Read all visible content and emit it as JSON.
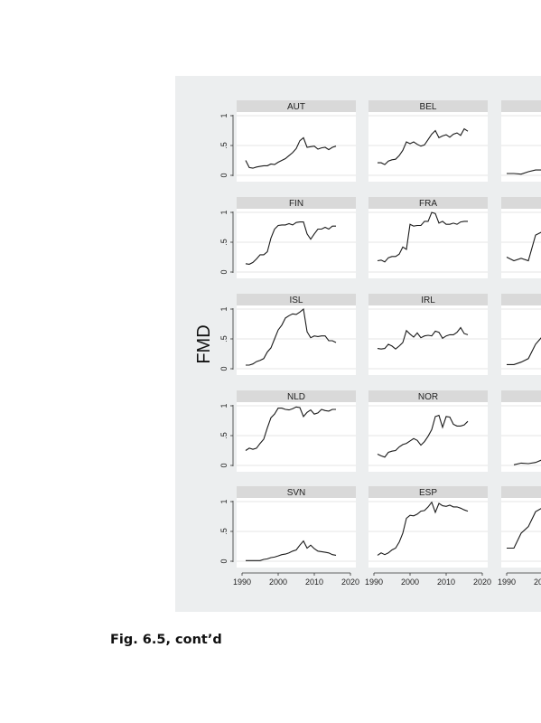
{
  "caption": "Fig. 6.5, cont’d",
  "chart_data": {
    "type": "line",
    "ylabel": "FMD",
    "xlim": [
      1990,
      2020
    ],
    "ylim": [
      0,
      1
    ],
    "xticks": [
      1990,
      2000,
      2010,
      2020
    ],
    "yticks": [
      0,
      0.5,
      1
    ],
    "ytick_labels": [
      "0",
      ".5",
      "1"
    ],
    "grid": true,
    "line_color": "#1a1a1a",
    "panels": [
      {
        "name": "AUT",
        "x": [
          1991,
          1992,
          1993,
          1994,
          1995,
          1996,
          1997,
          1998,
          1999,
          2000,
          2001,
          2002,
          2003,
          2004,
          2005,
          2006,
          2007,
          2008,
          2009,
          2010,
          2011,
          2012,
          2013,
          2014,
          2015,
          2016
        ],
        "values": [
          0.25,
          0.13,
          0.12,
          0.14,
          0.15,
          0.16,
          0.16,
          0.19,
          0.18,
          0.22,
          0.25,
          0.28,
          0.33,
          0.38,
          0.45,
          0.58,
          0.63,
          0.47,
          0.48,
          0.49,
          0.44,
          0.46,
          0.47,
          0.43,
          0.47,
          0.49
        ]
      },
      {
        "name": "BEL",
        "x": [
          1991,
          1992,
          1993,
          1994,
          1995,
          1996,
          1997,
          1998,
          1999,
          2000,
          2001,
          2002,
          2003,
          2004,
          2005,
          2006,
          2007,
          2008,
          2009,
          2010,
          2011,
          2012,
          2013,
          2014,
          2015,
          2016
        ],
        "values": [
          0.21,
          0.21,
          0.18,
          0.24,
          0.26,
          0.27,
          0.33,
          0.42,
          0.56,
          0.53,
          0.56,
          0.52,
          0.49,
          0.51,
          0.6,
          0.69,
          0.75,
          0.63,
          0.66,
          0.68,
          0.64,
          0.69,
          0.71,
          0.67,
          0.78,
          0.74
        ]
      },
      {
        "name": "",
        "x": [
          1990,
          1992,
          1994,
          1996,
          1998,
          2000
        ],
        "values": [
          0.03,
          0.03,
          0.02,
          0.06,
          0.09,
          0.09
        ]
      },
      {
        "name": "FIN",
        "x": [
          1991,
          1992,
          1993,
          1994,
          1995,
          1996,
          1997,
          1998,
          1999,
          2000,
          2001,
          2002,
          2003,
          2004,
          2005,
          2006,
          2007,
          2008,
          2009,
          2010,
          2011,
          2012,
          2013,
          2014,
          2015,
          2016
        ],
        "values": [
          0.14,
          0.13,
          0.16,
          0.22,
          0.29,
          0.29,
          0.34,
          0.57,
          0.72,
          0.78,
          0.79,
          0.79,
          0.81,
          0.79,
          0.83,
          0.84,
          0.84,
          0.64,
          0.55,
          0.64,
          0.72,
          0.72,
          0.75,
          0.72,
          0.77,
          0.77
        ]
      },
      {
        "name": "FRA",
        "x": [
          1991,
          1992,
          1993,
          1994,
          1995,
          1996,
          1997,
          1998,
          1999,
          2000,
          2001,
          2002,
          2003,
          2004,
          2005,
          2006,
          2007,
          2008,
          2009,
          2010,
          2011,
          2012,
          2013,
          2014,
          2015,
          2016
        ],
        "values": [
          0.19,
          0.2,
          0.17,
          0.24,
          0.26,
          0.26,
          0.3,
          0.42,
          0.38,
          0.8,
          0.77,
          0.78,
          0.78,
          0.85,
          0.85,
          1.0,
          0.98,
          0.82,
          0.85,
          0.8,
          0.8,
          0.82,
          0.8,
          0.84,
          0.85,
          0.85
        ]
      },
      {
        "name": "",
        "x": [
          1990,
          1992,
          1994,
          1996,
          1998,
          2000
        ],
        "values": [
          0.25,
          0.19,
          0.23,
          0.19,
          0.62,
          0.68
        ]
      },
      {
        "name": "ISL",
        "x": [
          1991,
          1992,
          1993,
          1994,
          1995,
          1996,
          1997,
          1998,
          1999,
          2000,
          2001,
          2002,
          2003,
          2004,
          2005,
          2006,
          2007,
          2008,
          2009,
          2010,
          2011,
          2012,
          2013,
          2014,
          2015,
          2016
        ],
        "values": [
          0.06,
          0.06,
          0.08,
          0.12,
          0.14,
          0.17,
          0.28,
          0.35,
          0.5,
          0.65,
          0.73,
          0.85,
          0.89,
          0.92,
          0.91,
          0.95,
          1.0,
          0.62,
          0.52,
          0.55,
          0.54,
          0.55,
          0.55,
          0.47,
          0.47,
          0.44
        ]
      },
      {
        "name": "IRL",
        "x": [
          1991,
          1992,
          1993,
          1994,
          1995,
          1996,
          1997,
          1998,
          1999,
          2000,
          2001,
          2002,
          2003,
          2004,
          2005,
          2006,
          2007,
          2008,
          2009,
          2010,
          2011,
          2012,
          2013,
          2014,
          2015,
          2016
        ],
        "values": [
          0.34,
          0.33,
          0.34,
          0.41,
          0.38,
          0.33,
          0.38,
          0.44,
          0.64,
          0.58,
          0.53,
          0.6,
          0.52,
          0.55,
          0.56,
          0.55,
          0.63,
          0.61,
          0.51,
          0.55,
          0.57,
          0.57,
          0.61,
          0.69,
          0.59,
          0.57
        ]
      },
      {
        "name": "",
        "x": [
          1990,
          1992,
          1994,
          1996,
          1998,
          2000
        ],
        "values": [
          0.07,
          0.07,
          0.11,
          0.17,
          0.41,
          0.55
        ]
      },
      {
        "name": "NLD",
        "x": [
          1991,
          1992,
          1993,
          1994,
          1995,
          1996,
          1997,
          1998,
          1999,
          2000,
          2001,
          2002,
          2003,
          2004,
          2005,
          2006,
          2007,
          2008,
          2009,
          2010,
          2011,
          2012,
          2013,
          2014,
          2015,
          2016
        ],
        "values": [
          0.25,
          0.29,
          0.27,
          0.29,
          0.37,
          0.44,
          0.63,
          0.8,
          0.86,
          0.96,
          0.96,
          0.94,
          0.93,
          0.95,
          0.98,
          0.97,
          0.82,
          0.89,
          0.93,
          0.86,
          0.88,
          0.94,
          0.92,
          0.91,
          0.94,
          0.94
        ]
      },
      {
        "name": "NOR",
        "x": [
          1991,
          1992,
          1993,
          1994,
          1995,
          1996,
          1997,
          1998,
          1999,
          2000,
          2001,
          2002,
          2003,
          2004,
          2005,
          2006,
          2007,
          2008,
          2009,
          2010,
          2011,
          2012,
          2013,
          2014,
          2015,
          2016
        ],
        "values": [
          0.19,
          0.16,
          0.14,
          0.22,
          0.24,
          0.25,
          0.31,
          0.35,
          0.37,
          0.41,
          0.45,
          0.42,
          0.34,
          0.4,
          0.49,
          0.6,
          0.82,
          0.84,
          0.64,
          0.82,
          0.81,
          0.69,
          0.66,
          0.66,
          0.68,
          0.74
        ]
      },
      {
        "name": "",
        "x": [
          1992,
          1994,
          1996,
          1998,
          2000
        ],
        "values": [
          0.01,
          0.04,
          0.03,
          0.05,
          0.1
        ]
      },
      {
        "name": "SVN",
        "x": [
          1991,
          1992,
          1993,
          1994,
          1995,
          1996,
          1997,
          1998,
          1999,
          2000,
          2001,
          2002,
          2003,
          2004,
          2005,
          2006,
          2007,
          2008,
          2009,
          2010,
          2011,
          2012,
          2013,
          2014,
          2015,
          2016
        ],
        "values": [
          0.01,
          0.01,
          0.01,
          0.01,
          0.01,
          0.03,
          0.04,
          0.06,
          0.07,
          0.09,
          0.11,
          0.12,
          0.14,
          0.17,
          0.19,
          0.27,
          0.34,
          0.22,
          0.27,
          0.21,
          0.17,
          0.16,
          0.15,
          0.14,
          0.11,
          0.1
        ]
      },
      {
        "name": "ESP",
        "x": [
          1991,
          1992,
          1993,
          1994,
          1995,
          1996,
          1997,
          1998,
          1999,
          2000,
          2001,
          2002,
          2003,
          2004,
          2005,
          2006,
          2007,
          2008,
          2009,
          2010,
          2011,
          2012,
          2013,
          2014,
          2015,
          2016
        ],
        "values": [
          0.1,
          0.14,
          0.11,
          0.14,
          0.19,
          0.22,
          0.32,
          0.47,
          0.72,
          0.77,
          0.76,
          0.79,
          0.84,
          0.85,
          0.91,
          0.99,
          0.82,
          0.97,
          0.93,
          0.92,
          0.94,
          0.91,
          0.91,
          0.89,
          0.86,
          0.84
        ]
      },
      {
        "name": "",
        "x": [
          1990,
          1992,
          1994,
          1996,
          1998,
          2000
        ],
        "values": [
          0.22,
          0.22,
          0.47,
          0.58,
          0.83,
          0.9
        ]
      }
    ]
  }
}
